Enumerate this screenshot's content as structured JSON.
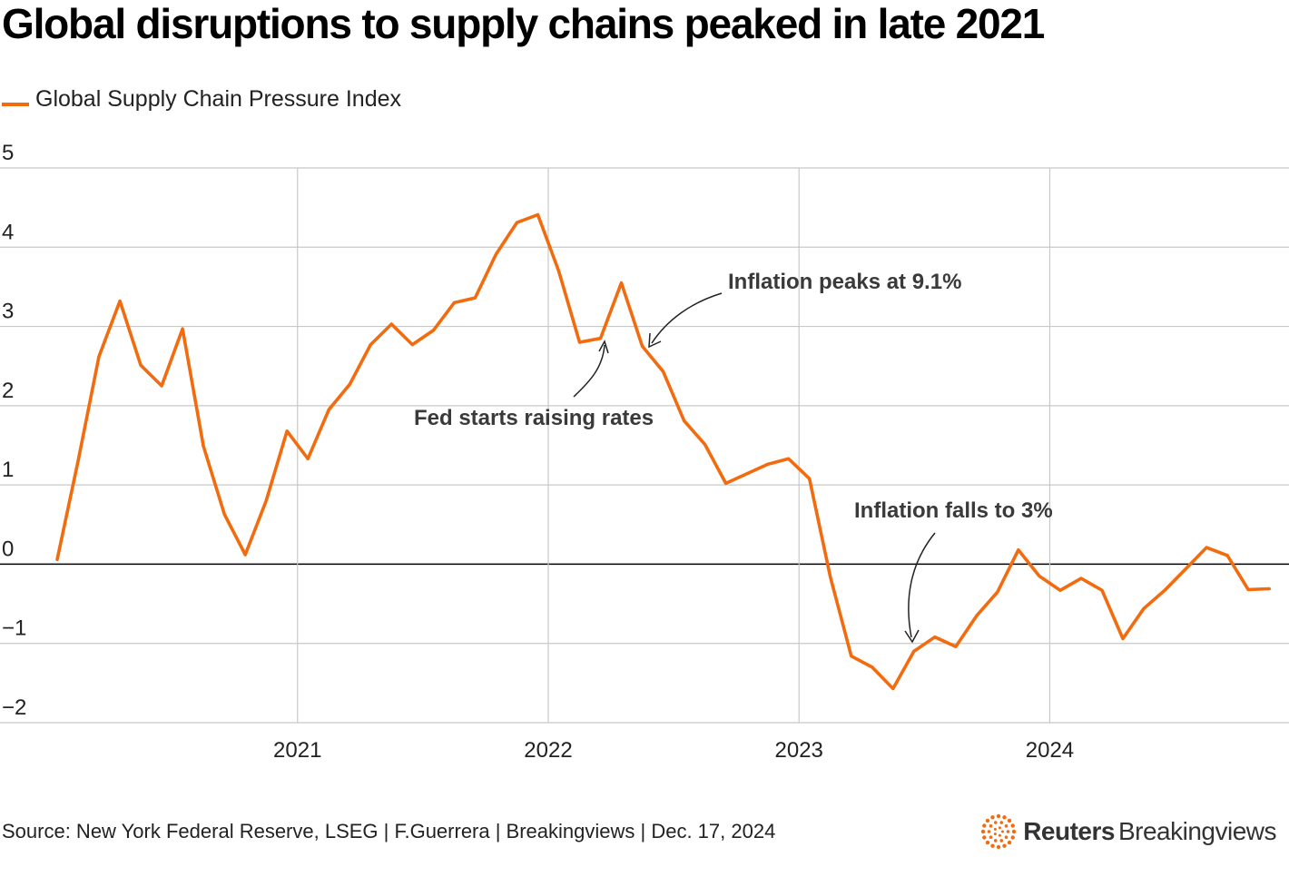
{
  "title": "Global disruptions to supply chains peaked in late 2021",
  "legend": {
    "label": "Global Supply Chain Pressure Index",
    "color": "#f26b0f"
  },
  "source": "Source: New York Federal Reserve, LSEG | F.Guerrera | Breakingviews | Dec. 17, 2024",
  "logo": {
    "bold": "Reuters",
    "regular": "Breakingviews",
    "icon": "reuters-dot-logo-icon",
    "color": "#f26b0f"
  },
  "chart_data": {
    "type": "line",
    "x_axis": {
      "labels": [
        "2021",
        "2022",
        "2023",
        "2024"
      ],
      "range": [
        "2020-01",
        "2024-11"
      ]
    },
    "y_axis": {
      "labels": [
        "5",
        "4",
        "3",
        "2",
        "1",
        "0",
        "−1",
        "−2"
      ],
      "range": [
        -2,
        5
      ]
    },
    "grid": true,
    "series": [
      {
        "name": "Global Supply Chain Pressure Index",
        "color": "#f26b0f",
        "x": [
          "2020-01",
          "2020-02",
          "2020-03",
          "2020-04",
          "2020-05",
          "2020-06",
          "2020-07",
          "2020-08",
          "2020-09",
          "2020-10",
          "2020-11",
          "2020-12",
          "2021-01",
          "2021-02",
          "2021-03",
          "2021-04",
          "2021-05",
          "2021-06",
          "2021-07",
          "2021-08",
          "2021-09",
          "2021-10",
          "2021-11",
          "2021-12",
          "2022-01",
          "2022-02",
          "2022-03",
          "2022-04",
          "2022-05",
          "2022-06",
          "2022-07",
          "2022-08",
          "2022-09",
          "2022-10",
          "2022-11",
          "2022-12",
          "2023-01",
          "2023-02",
          "2023-03",
          "2023-04",
          "2023-05",
          "2023-06",
          "2023-07",
          "2023-08",
          "2023-09",
          "2023-10",
          "2023-11",
          "2023-12",
          "2024-01",
          "2024-02",
          "2024-03",
          "2024-04",
          "2024-05",
          "2024-06",
          "2024-07",
          "2024-08",
          "2024-09",
          "2024-10",
          "2024-11"
        ],
        "values": [
          0.06,
          1.3,
          2.62,
          3.32,
          2.51,
          2.25,
          2.97,
          1.49,
          0.63,
          0.12,
          0.8,
          1.68,
          1.33,
          1.95,
          2.27,
          2.77,
          3.03,
          2.77,
          2.95,
          3.3,
          3.36,
          3.91,
          4.31,
          4.41,
          3.7,
          2.8,
          2.85,
          3.55,
          2.75,
          2.43,
          1.81,
          1.51,
          1.02,
          1.14,
          1.26,
          1.33,
          1.08,
          -0.16,
          -1.16,
          -1.3,
          -1.57,
          -1.1,
          -0.92,
          -1.04,
          -0.65,
          -0.35,
          0.18,
          -0.15,
          -0.33,
          -0.18,
          -0.33,
          -0.94,
          -0.56,
          -0.33,
          -0.06,
          0.21,
          0.11,
          -0.32,
          -0.31
        ]
      }
    ],
    "annotations": [
      {
        "text": "Fed starts raising rates",
        "x": "2022-03",
        "y": 2.85
      },
      {
        "text": "Inflation peaks at 9.1%",
        "x": "2022-06",
        "y": 2.75
      },
      {
        "text": "Inflation falls to 3%",
        "x": "2023-06",
        "y": -1.1
      }
    ]
  }
}
